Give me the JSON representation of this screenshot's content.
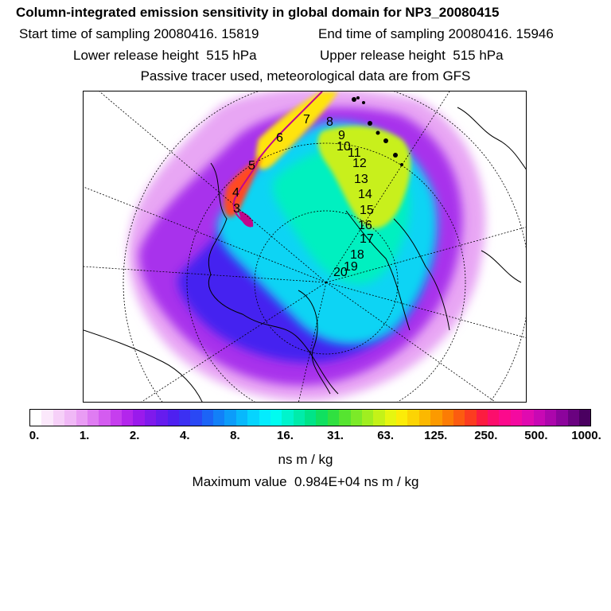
{
  "header": {
    "title": "Column-integrated emission sensitivity in global domain for NP3_20080415",
    "start_label": "Start time of sampling 20080416. 15819",
    "end_label": "End time of sampling 20080416. 15946",
    "lower_label": "Lower release height  515 hPa",
    "upper_label": "Upper release height  515 hPa",
    "tracer_note": "Passive tracer used, meteorological data are from GFS"
  },
  "trajectory_labels": [
    "3",
    "4",
    "5",
    "6",
    "7",
    "8",
    "9",
    "10",
    "11",
    "12",
    "13",
    "14",
    "15",
    "16",
    "17",
    "18",
    "19",
    "20"
  ],
  "colorbar": {
    "ticks": [
      "0.",
      "1.",
      "2.",
      "4.",
      "8.",
      "16.",
      "31.",
      "63.",
      "125.",
      "250.",
      "500.",
      "1000."
    ],
    "unit": "ns m / kg",
    "colors": [
      "#ffffff",
      "#fbe8fb",
      "#f6d0f8",
      "#f0b8f6",
      "#e99cf4",
      "#df7cf2",
      "#d45cf0",
      "#c63eee",
      "#b326ec",
      "#9a1aec",
      "#7f1aec",
      "#661cee",
      "#4e20f0",
      "#3c30f2",
      "#2a48f4",
      "#1c64f6",
      "#1280f8",
      "#0c9cfa",
      "#08b8fc",
      "#06d4fe",
      "#04ecfe",
      "#00fcf0",
      "#00f4cc",
      "#00ecaa",
      "#00e488",
      "#10e060",
      "#30e040",
      "#56e430",
      "#7cea28",
      "#a0ee20",
      "#c4f218",
      "#e6f610",
      "#fcec08",
      "#fcd404",
      "#fcb800",
      "#fc9a00",
      "#fc7c04",
      "#fc5c10",
      "#fc3c20",
      "#fc1c40",
      "#fc0e6c",
      "#fc0a8c",
      "#f40aa0",
      "#e00ab0",
      "#c808b4",
      "#ac06ac",
      "#8c049c",
      "#6a0280",
      "#4a0060"
    ]
  },
  "max_value_label": "Maximum value  0.984E+04 ns m / kg"
}
